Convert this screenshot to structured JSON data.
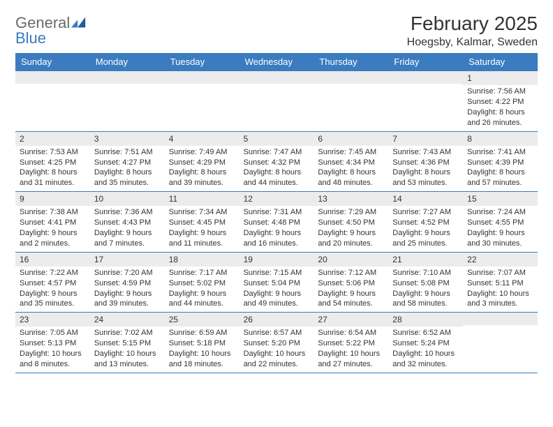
{
  "logo": {
    "text_gray": "General",
    "text_blue": "Blue"
  },
  "title": "February 2025",
  "location": "Hoegsby, Kalmar, Sweden",
  "colors": {
    "header_bg": "#3b7bbf",
    "header_text": "#ffffff",
    "daynum_bg": "#ececec",
    "rule": "#3b7bbf",
    "text": "#333333",
    "logo_gray": "#6a6a6a",
    "logo_blue": "#3b7bbf",
    "page_bg": "#ffffff"
  },
  "day_names": [
    "Sunday",
    "Monday",
    "Tuesday",
    "Wednesday",
    "Thursday",
    "Friday",
    "Saturday"
  ],
  "weeks": [
    [
      null,
      null,
      null,
      null,
      null,
      null,
      {
        "n": "1",
        "sunrise": "Sunrise: 7:56 AM",
        "sunset": "Sunset: 4:22 PM",
        "day1": "Daylight: 8 hours",
        "day2": "and 26 minutes."
      }
    ],
    [
      {
        "n": "2",
        "sunrise": "Sunrise: 7:53 AM",
        "sunset": "Sunset: 4:25 PM",
        "day1": "Daylight: 8 hours",
        "day2": "and 31 minutes."
      },
      {
        "n": "3",
        "sunrise": "Sunrise: 7:51 AM",
        "sunset": "Sunset: 4:27 PM",
        "day1": "Daylight: 8 hours",
        "day2": "and 35 minutes."
      },
      {
        "n": "4",
        "sunrise": "Sunrise: 7:49 AM",
        "sunset": "Sunset: 4:29 PM",
        "day1": "Daylight: 8 hours",
        "day2": "and 39 minutes."
      },
      {
        "n": "5",
        "sunrise": "Sunrise: 7:47 AM",
        "sunset": "Sunset: 4:32 PM",
        "day1": "Daylight: 8 hours",
        "day2": "and 44 minutes."
      },
      {
        "n": "6",
        "sunrise": "Sunrise: 7:45 AM",
        "sunset": "Sunset: 4:34 PM",
        "day1": "Daylight: 8 hours",
        "day2": "and 48 minutes."
      },
      {
        "n": "7",
        "sunrise": "Sunrise: 7:43 AM",
        "sunset": "Sunset: 4:36 PM",
        "day1": "Daylight: 8 hours",
        "day2": "and 53 minutes."
      },
      {
        "n": "8",
        "sunrise": "Sunrise: 7:41 AM",
        "sunset": "Sunset: 4:39 PM",
        "day1": "Daylight: 8 hours",
        "day2": "and 57 minutes."
      }
    ],
    [
      {
        "n": "9",
        "sunrise": "Sunrise: 7:38 AM",
        "sunset": "Sunset: 4:41 PM",
        "day1": "Daylight: 9 hours",
        "day2": "and 2 minutes."
      },
      {
        "n": "10",
        "sunrise": "Sunrise: 7:36 AM",
        "sunset": "Sunset: 4:43 PM",
        "day1": "Daylight: 9 hours",
        "day2": "and 7 minutes."
      },
      {
        "n": "11",
        "sunrise": "Sunrise: 7:34 AM",
        "sunset": "Sunset: 4:45 PM",
        "day1": "Daylight: 9 hours",
        "day2": "and 11 minutes."
      },
      {
        "n": "12",
        "sunrise": "Sunrise: 7:31 AM",
        "sunset": "Sunset: 4:48 PM",
        "day1": "Daylight: 9 hours",
        "day2": "and 16 minutes."
      },
      {
        "n": "13",
        "sunrise": "Sunrise: 7:29 AM",
        "sunset": "Sunset: 4:50 PM",
        "day1": "Daylight: 9 hours",
        "day2": "and 20 minutes."
      },
      {
        "n": "14",
        "sunrise": "Sunrise: 7:27 AM",
        "sunset": "Sunset: 4:52 PM",
        "day1": "Daylight: 9 hours",
        "day2": "and 25 minutes."
      },
      {
        "n": "15",
        "sunrise": "Sunrise: 7:24 AM",
        "sunset": "Sunset: 4:55 PM",
        "day1": "Daylight: 9 hours",
        "day2": "and 30 minutes."
      }
    ],
    [
      {
        "n": "16",
        "sunrise": "Sunrise: 7:22 AM",
        "sunset": "Sunset: 4:57 PM",
        "day1": "Daylight: 9 hours",
        "day2": "and 35 minutes."
      },
      {
        "n": "17",
        "sunrise": "Sunrise: 7:20 AM",
        "sunset": "Sunset: 4:59 PM",
        "day1": "Daylight: 9 hours",
        "day2": "and 39 minutes."
      },
      {
        "n": "18",
        "sunrise": "Sunrise: 7:17 AM",
        "sunset": "Sunset: 5:02 PM",
        "day1": "Daylight: 9 hours",
        "day2": "and 44 minutes."
      },
      {
        "n": "19",
        "sunrise": "Sunrise: 7:15 AM",
        "sunset": "Sunset: 5:04 PM",
        "day1": "Daylight: 9 hours",
        "day2": "and 49 minutes."
      },
      {
        "n": "20",
        "sunrise": "Sunrise: 7:12 AM",
        "sunset": "Sunset: 5:06 PM",
        "day1": "Daylight: 9 hours",
        "day2": "and 54 minutes."
      },
      {
        "n": "21",
        "sunrise": "Sunrise: 7:10 AM",
        "sunset": "Sunset: 5:08 PM",
        "day1": "Daylight: 9 hours",
        "day2": "and 58 minutes."
      },
      {
        "n": "22",
        "sunrise": "Sunrise: 7:07 AM",
        "sunset": "Sunset: 5:11 PM",
        "day1": "Daylight: 10 hours",
        "day2": "and 3 minutes."
      }
    ],
    [
      {
        "n": "23",
        "sunrise": "Sunrise: 7:05 AM",
        "sunset": "Sunset: 5:13 PM",
        "day1": "Daylight: 10 hours",
        "day2": "and 8 minutes."
      },
      {
        "n": "24",
        "sunrise": "Sunrise: 7:02 AM",
        "sunset": "Sunset: 5:15 PM",
        "day1": "Daylight: 10 hours",
        "day2": "and 13 minutes."
      },
      {
        "n": "25",
        "sunrise": "Sunrise: 6:59 AM",
        "sunset": "Sunset: 5:18 PM",
        "day1": "Daylight: 10 hours",
        "day2": "and 18 minutes."
      },
      {
        "n": "26",
        "sunrise": "Sunrise: 6:57 AM",
        "sunset": "Sunset: 5:20 PM",
        "day1": "Daylight: 10 hours",
        "day2": "and 22 minutes."
      },
      {
        "n": "27",
        "sunrise": "Sunrise: 6:54 AM",
        "sunset": "Sunset: 5:22 PM",
        "day1": "Daylight: 10 hours",
        "day2": "and 27 minutes."
      },
      {
        "n": "28",
        "sunrise": "Sunrise: 6:52 AM",
        "sunset": "Sunset: 5:24 PM",
        "day1": "Daylight: 10 hours",
        "day2": "and 32 minutes."
      },
      null
    ]
  ]
}
